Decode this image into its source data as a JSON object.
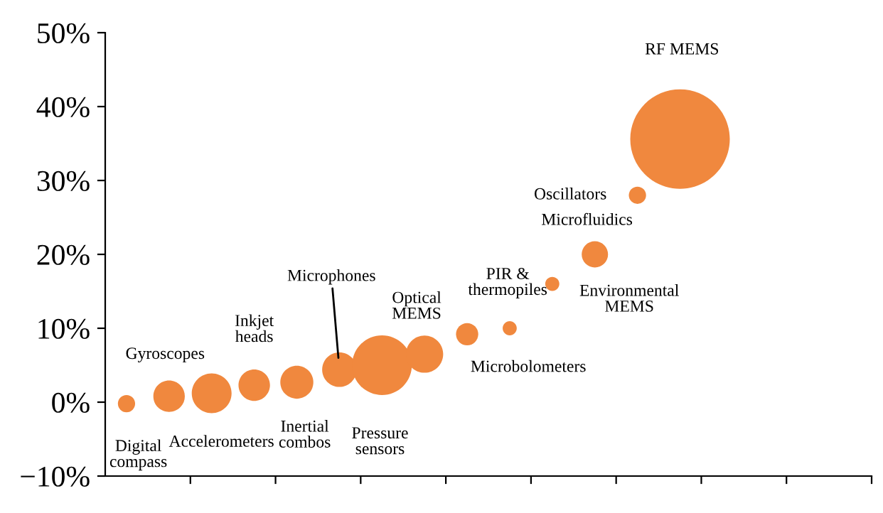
{
  "chart_data": {
    "type": "bubble",
    "categories": [
      null,
      null,
      null,
      null,
      null,
      null,
      null,
      null,
      null,
      null,
      null,
      null,
      null,
      null,
      null,
      null,
      null,
      null
    ],
    "values": [
      -0.2,
      0.8,
      1.2,
      2.3,
      2.7,
      4.4,
      5.0,
      6.5,
      9.2,
      10,
      16,
      20,
      28,
      35.6,
      null,
      null,
      null,
      null
    ],
    "sizes": [
      0.03,
      0.1,
      0.16,
      0.1,
      0.11,
      0.12,
      0.36,
      0.14,
      0.05,
      0.02,
      0.02,
      0.07,
      0.03,
      1,
      null,
      null,
      null,
      null
    ],
    "color": "#f0883e",
    "annotations": [
      "Digital\ncompass",
      "Gyroscopes",
      "Accelerometers",
      "Inkjet\nheads",
      "Inertial\ncombos",
      "Microphones",
      "Pressure\nsensors",
      "Optical\nMEMS",
      "Microbolometers",
      "PIR &\nthermopiles",
      "Environmental\nMEMS",
      "Microfluidics",
      "Oscillators",
      "RF MEMS"
    ],
    "ylim": [
      -10,
      50
    ],
    "yticks": [
      {
        "value": -10,
        "label": "−10%"
      },
      {
        "value": 0,
        "label": "0%"
      },
      {
        "value": 10,
        "label": "10%"
      },
      {
        "value": 20,
        "label": "20%"
      },
      {
        "value": 30,
        "label": "30%"
      },
      {
        "value": 40,
        "label": "40%"
      },
      {
        "value": 50,
        "label": "50%"
      }
    ],
    "tick_labels": "y",
    "grid": false
  }
}
